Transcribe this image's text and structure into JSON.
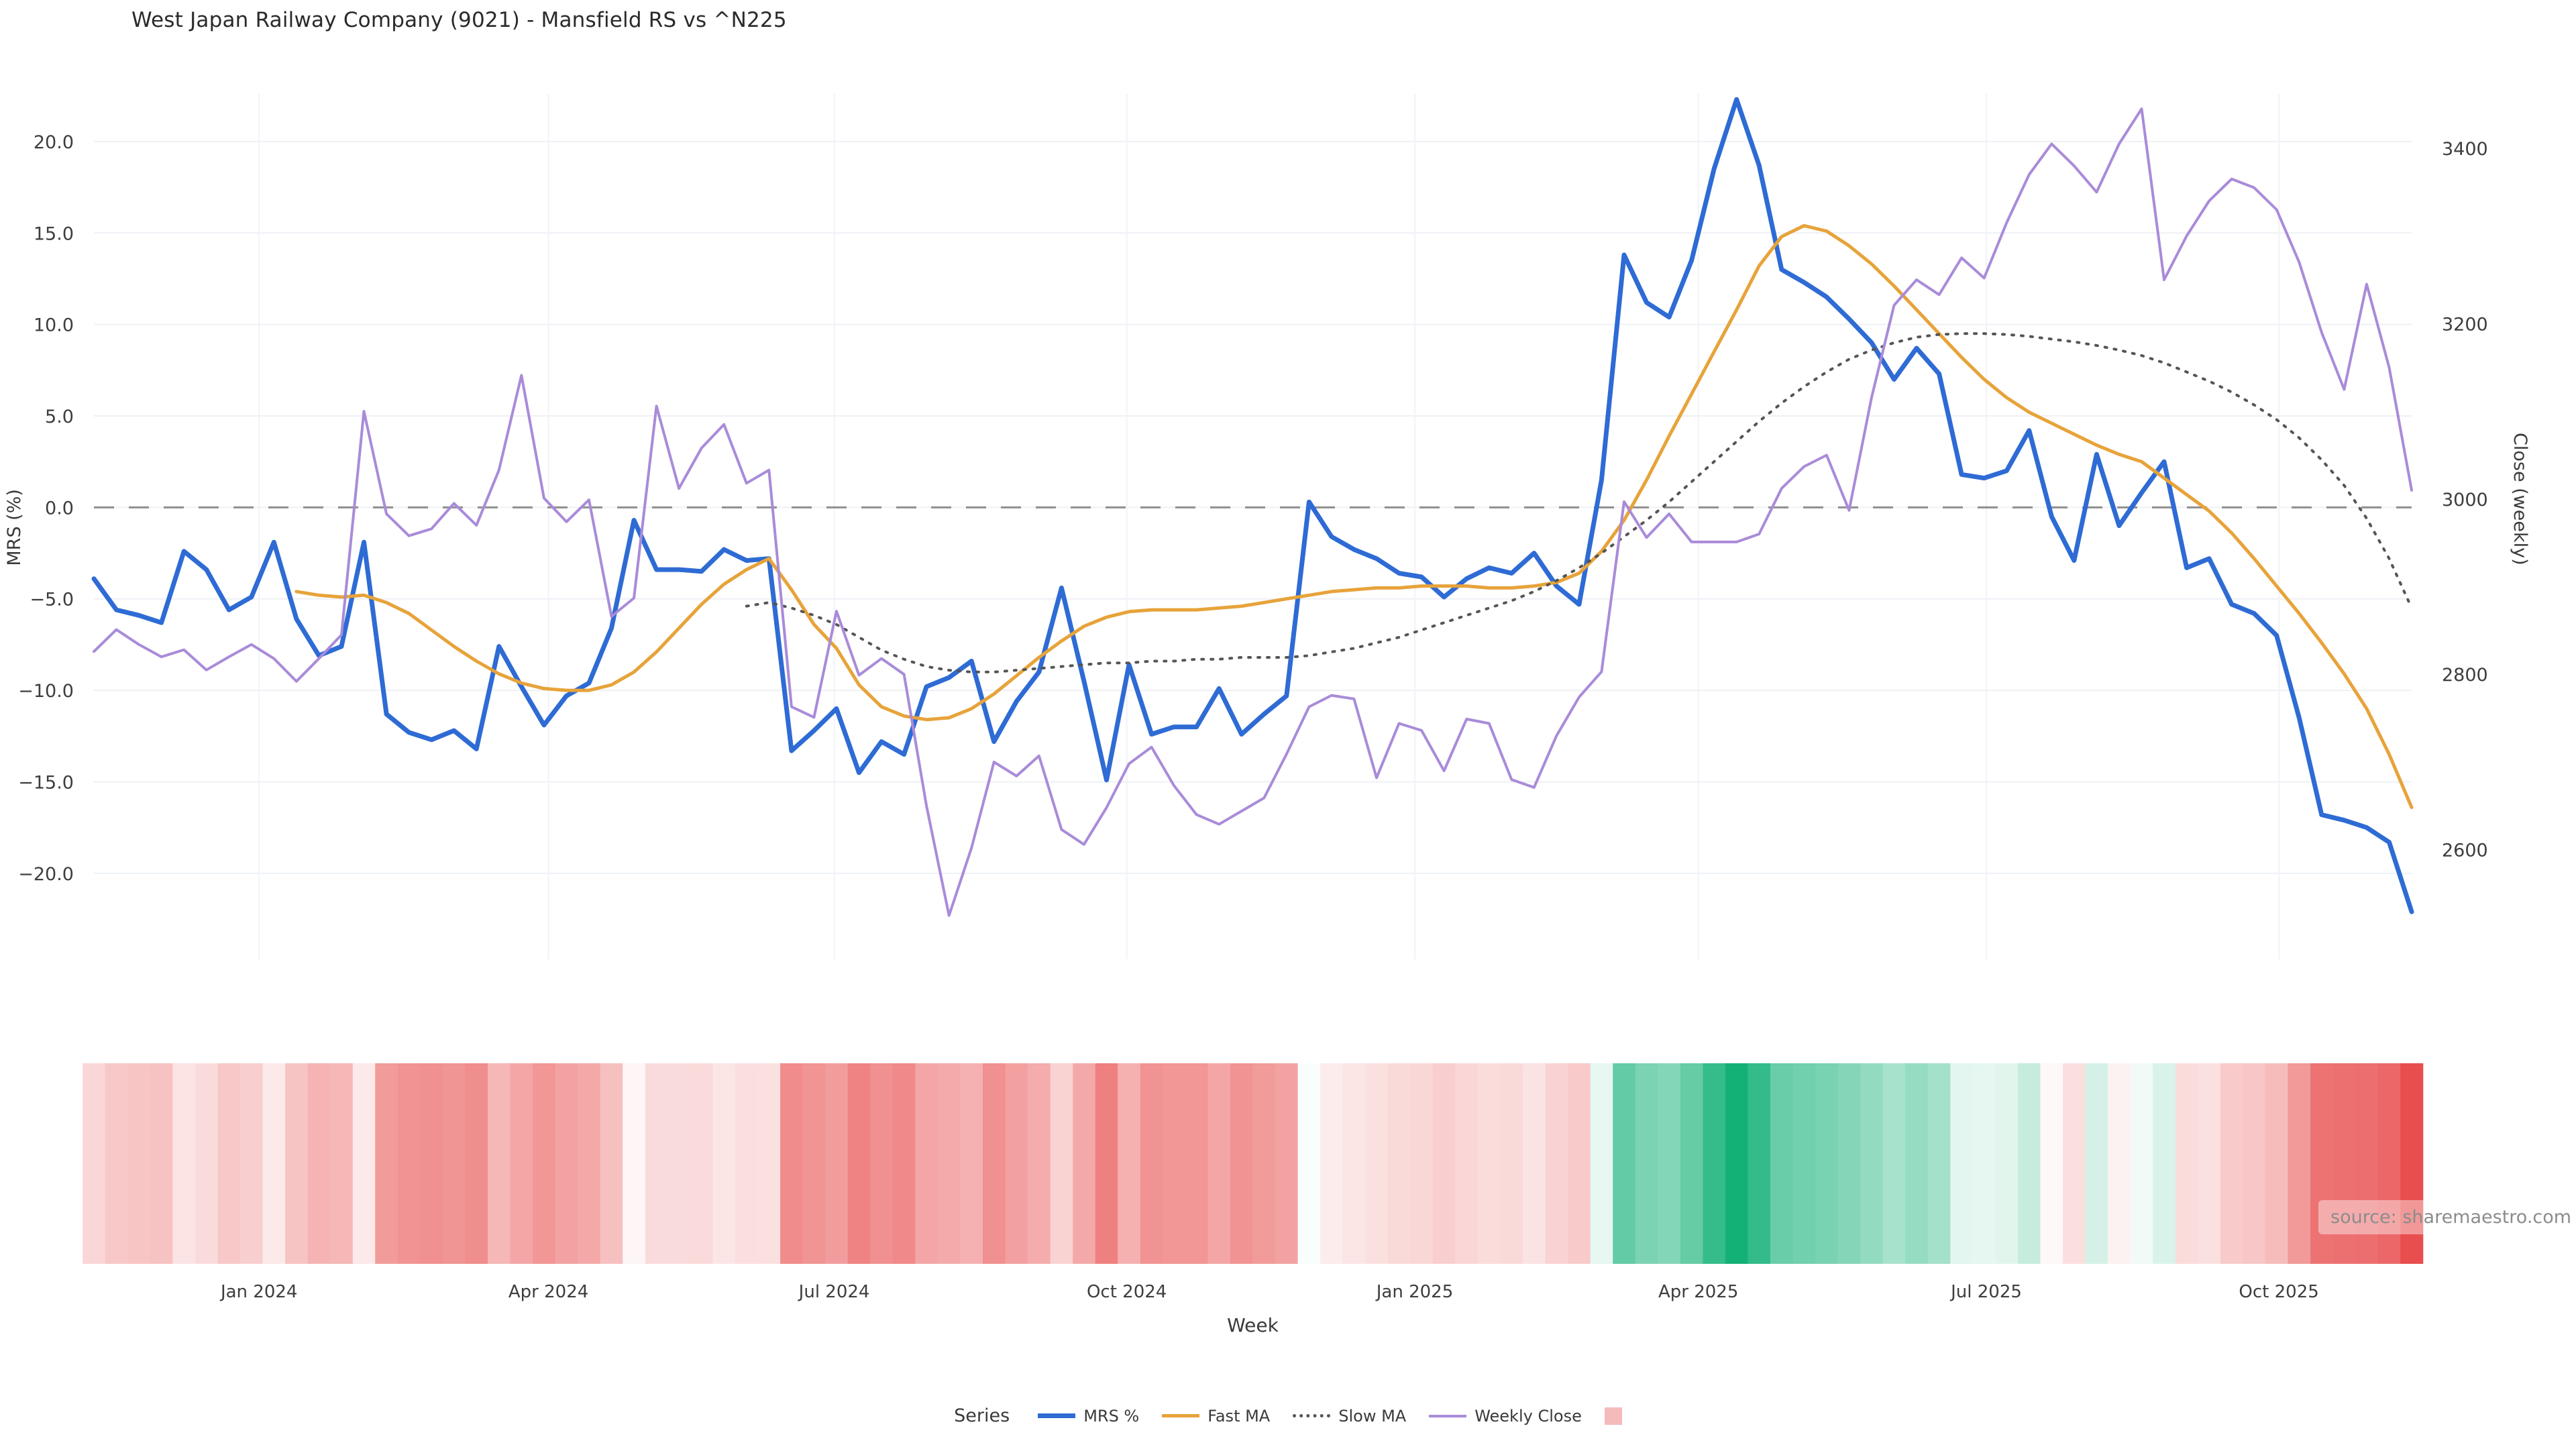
{
  "page": {
    "title": "West Japan Railway Company (9021) - Mansfield RS vs ^N225"
  },
  "watermark": {
    "text": "source: sharemaestro.com"
  },
  "legend": {
    "title": "Series",
    "items": [
      {
        "label": "MRS %",
        "swatch": "line",
        "color": "#2e6bd4",
        "thickness": 7
      },
      {
        "label": "Fast MA",
        "swatch": "line",
        "color": "#e7a33a",
        "thickness": 5
      },
      {
        "label": "Slow MA",
        "swatch": "dotted",
        "color": "#555555",
        "thickness": 5
      },
      {
        "label": "Weekly Close",
        "swatch": "line",
        "color": "#a98bd9",
        "thickness": 4
      },
      {
        "label": "",
        "swatch": "square",
        "color": "#f5baba",
        "thickness": 26
      }
    ]
  },
  "chart_data": {
    "type": "line",
    "title": "West Japan Railway Company (9021) - Mansfield RS vs ^N225",
    "xlabel": "Week",
    "ylabel_left": "MRS (%)",
    "ylabel_right": "Close (weekly)",
    "x_weeks": 104,
    "x_ticks": [
      {
        "label": "Jan 2024",
        "week": 7.34
      },
      {
        "label": "Apr 2024",
        "week": 20.2
      },
      {
        "label": "Jul 2024",
        "week": 32.9
      },
      {
        "label": "Oct 2024",
        "week": 45.9
      },
      {
        "label": "Jan 2025",
        "week": 58.7
      },
      {
        "label": "Apr 2025",
        "week": 71.3
      },
      {
        "label": "Jul 2025",
        "week": 84.1
      },
      {
        "label": "Oct 2025",
        "week": 97.1
      }
    ],
    "yticks_left": [
      {
        "v": 20,
        "label": "20.0"
      },
      {
        "v": 15,
        "label": "15.0"
      },
      {
        "v": 10,
        "label": "10.0"
      },
      {
        "v": 5,
        "label": "5.0"
      },
      {
        "v": 0,
        "label": "0.0"
      },
      {
        "v": -5,
        "label": "−5.0"
      },
      {
        "v": -10,
        "label": "−10.0"
      },
      {
        "v": -15,
        "label": "−15.0"
      },
      {
        "v": -20,
        "label": "−20.0"
      }
    ],
    "yticks_right": [
      {
        "v": 3400,
        "label": "3400"
      },
      {
        "v": 3200,
        "label": "3200"
      },
      {
        "v": 3000,
        "label": "3000"
      },
      {
        "v": 2800,
        "label": "2800"
      },
      {
        "v": 2600,
        "label": "2600"
      }
    ],
    "ylim_left": [
      -24.7,
      22.6
    ],
    "ylim_right": [
      2475,
      3462
    ],
    "zero_line": 0,
    "grid": true,
    "legend_position": "bottom",
    "series": [
      {
        "name": "MRS %",
        "axis": "left",
        "color": "#2e6bd4",
        "width": 7,
        "dash": null,
        "start_week": 0,
        "values": [
          -3.9,
          -5.6,
          -5.9,
          -6.3,
          -2.4,
          -3.4,
          -5.6,
          -4.9,
          -1.9,
          -6.1,
          -8.1,
          -7.6,
          -1.9,
          -11.3,
          -12.3,
          -12.7,
          -12.2,
          -13.2,
          -7.6,
          -9.8,
          -11.9,
          -10.3,
          -9.6,
          -6.6,
          -0.7,
          -3.4,
          -3.4,
          -3.5,
          -2.3,
          -2.9,
          -2.8,
          -13.3,
          -12.2,
          -11.0,
          -14.5,
          -12.8,
          -13.5,
          -9.8,
          -9.3,
          -8.4,
          -12.8,
          -10.6,
          -9.0,
          -4.4,
          -9.5,
          -14.9,
          -8.6,
          -12.4,
          -12.0,
          -12.0,
          -9.9,
          -12.4,
          -11.3,
          -10.3,
          0.3,
          -1.6,
          -2.3,
          -2.8,
          -3.6,
          -3.8,
          -4.9,
          -3.9,
          -3.3,
          -3.6,
          -2.5,
          -4.3,
          -5.3,
          1.5,
          13.8,
          11.2,
          10.4,
          13.5,
          18.5,
          22.3,
          18.7,
          13.0,
          12.3,
          11.5,
          10.3,
          9.0,
          7.0,
          8.7,
          7.3,
          1.8,
          1.6,
          2.0,
          4.2,
          -0.5,
          -2.9,
          2.9,
          -1.0,
          0.8,
          2.5,
          -3.3,
          -2.8,
          -5.3,
          -5.8,
          -7.0,
          -11.5,
          -16.8,
          -17.1,
          -17.5,
          -18.3,
          -22.1
        ]
      },
      {
        "name": "Fast MA",
        "axis": "left",
        "color": "#e7a33a",
        "width": 5,
        "dash": null,
        "start_week": 9,
        "values": [
          -4.6,
          -4.8,
          -4.9,
          -4.8,
          -5.2,
          -5.8,
          -6.7,
          -7.6,
          -8.4,
          -9.1,
          -9.6,
          -9.9,
          -10.0,
          -10.0,
          -9.7,
          -9.0,
          -7.9,
          -6.6,
          -5.3,
          -4.2,
          -3.4,
          -2.8,
          -4.5,
          -6.4,
          -7.7,
          -9.7,
          -10.9,
          -11.4,
          -11.6,
          -11.5,
          -11.0,
          -10.2,
          -9.2,
          -8.2,
          -7.3,
          -6.5,
          -6.0,
          -5.7,
          -5.6,
          -5.6,
          -5.6,
          -5.5,
          -5.4,
          -5.2,
          -5.0,
          -4.8,
          -4.6,
          -4.5,
          -4.4,
          -4.4,
          -4.3,
          -4.3,
          -4.3,
          -4.4,
          -4.4,
          -4.3,
          -4.1,
          -3.6,
          -2.4,
          -0.7,
          1.5,
          3.9,
          6.2,
          8.5,
          10.8,
          13.2,
          14.8,
          15.4,
          15.1,
          14.3,
          13.3,
          12.1,
          10.8,
          9.5,
          8.2,
          7.0,
          6.0,
          5.2,
          4.6,
          4.0,
          3.4,
          2.9,
          2.5,
          1.6,
          0.7,
          -0.2,
          -1.4,
          -2.8,
          -4.3,
          -5.8,
          -7.4,
          -9.1,
          -11.0,
          -13.5,
          -16.4
        ]
      },
      {
        "name": "Slow MA",
        "axis": "left",
        "color": "#555555",
        "width": 4,
        "dash": "3 11",
        "start_week": 29,
        "values": [
          -5.4,
          -5.2,
          -5.5,
          -5.9,
          -6.4,
          -7.1,
          -7.8,
          -8.3,
          -8.7,
          -8.9,
          -9.0,
          -9.0,
          -8.9,
          -8.8,
          -8.7,
          -8.6,
          -8.5,
          -8.5,
          -8.4,
          -8.4,
          -8.3,
          -8.3,
          -8.2,
          -8.2,
          -8.2,
          -8.1,
          -7.9,
          -7.7,
          -7.4,
          -7.1,
          -6.7,
          -6.3,
          -5.9,
          -5.5,
          -5.1,
          -4.6,
          -4.0,
          -3.3,
          -2.5,
          -1.6,
          -0.7,
          0.3,
          1.4,
          2.5,
          3.6,
          4.7,
          5.7,
          6.6,
          7.4,
          8.1,
          8.6,
          9.0,
          9.3,
          9.45,
          9.5,
          9.5,
          9.45,
          9.35,
          9.2,
          9.05,
          8.85,
          8.6,
          8.3,
          7.9,
          7.4,
          6.9,
          6.3,
          5.6,
          4.8,
          3.8,
          2.6,
          1.2,
          -0.6,
          -2.8,
          -5.5
        ]
      },
      {
        "name": "Weekly Close",
        "axis": "right",
        "color": "#a98bd9",
        "width": 4,
        "dash": null,
        "start_week": 0,
        "values": [
          2826,
          2851,
          2834,
          2820,
          2828,
          2805,
          2820,
          2834,
          2818,
          2792,
          2818,
          2845,
          3100,
          2983,
          2958,
          2966,
          2995,
          2970,
          3033,
          3141,
          3001,
          2974,
          2999,
          2866,
          2887,
          3106,
          3012,
          3058,
          3085,
          3018,
          3033,
          2763,
          2751,
          2872,
          2799,
          2818,
          2800,
          2650,
          2525,
          2602,
          2700,
          2684,
          2707,
          2623,
          2606,
          2648,
          2698,
          2717,
          2673,
          2640,
          2629,
          2644,
          2659,
          2709,
          2763,
          2776,
          2772,
          2682,
          2744,
          2736,
          2690,
          2749,
          2744,
          2680,
          2671,
          2730,
          2774,
          2803,
          2997,
          2956,
          2983,
          2951,
          2951,
          2951,
          2960,
          3012,
          3037,
          3050,
          2987,
          3116,
          3221,
          3250,
          3233,
          3275,
          3252,
          3315,
          3370,
          3405,
          3380,
          3350,
          3405,
          3445,
          3250,
          3300,
          3340,
          3365,
          3355,
          3330,
          3270,
          3190,
          3125,
          3245,
          3150,
          3010
        ]
      }
    ],
    "heatmap": {
      "source": "MRS %",
      "negative_color": "#e84b4b",
      "positive_color": "#12b076",
      "max_abs": 22.5,
      "gamma": 0.85
    },
    "colors": {
      "grid": "#eef0f5",
      "vgrid": "#f2f3f7",
      "zero_line": "#8f8f8f",
      "tick_text": "#3d3d3d",
      "axis_title": "#3a3a3a"
    }
  }
}
